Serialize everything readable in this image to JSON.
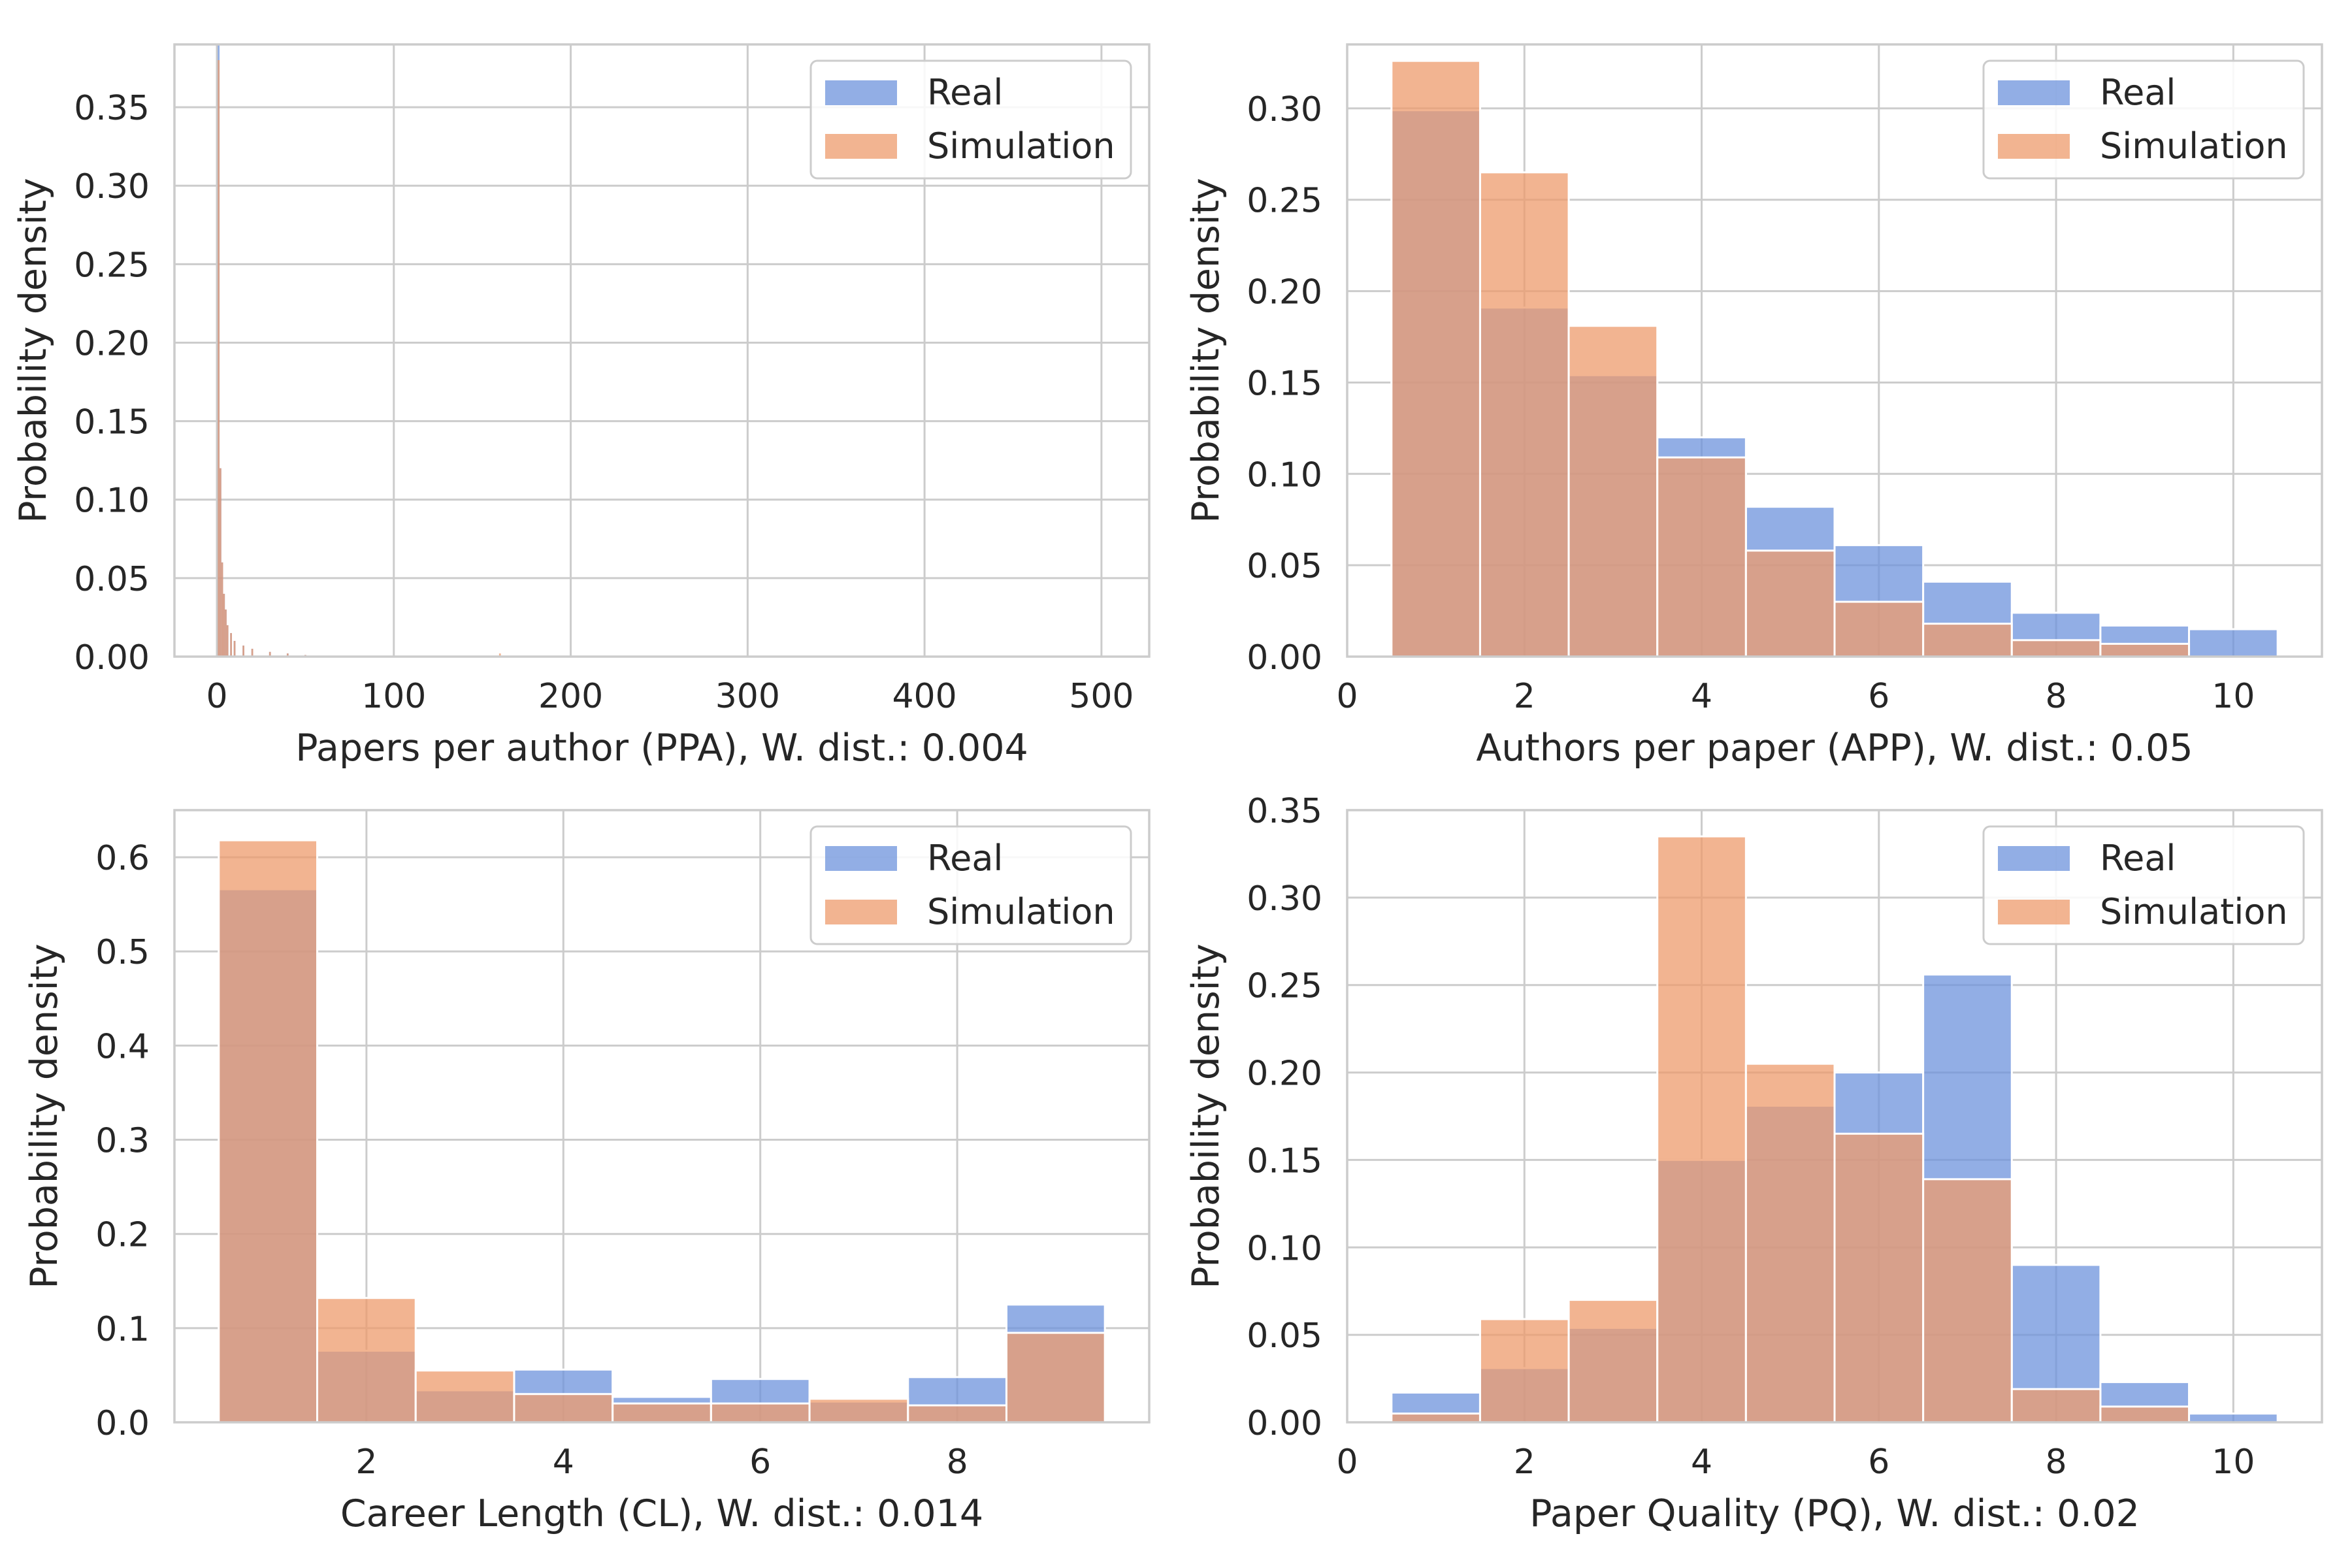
{
  "colors": {
    "real": "#6d93dc",
    "simulation": "#ee9b6c",
    "grid": "#cccccc",
    "frame": "#cccccc",
    "text": "#262626"
  },
  "legend_labels": [
    "Real",
    "Simulation"
  ],
  "chart_data": [
    {
      "type": "bar",
      "subtype": "histogram-overlay",
      "xlabel": "Papers per author (PPA), W. dist.: 0.004",
      "ylabel": "Probability density",
      "xlim": [
        -24,
        527
      ],
      "ylim": [
        0,
        0.39
      ],
      "xticks": [
        0,
        100,
        200,
        300,
        400,
        500
      ],
      "yticks": [
        0.0,
        0.05,
        0.1,
        0.15,
        0.2,
        0.25,
        0.3,
        0.35
      ],
      "ytick_decimals": 2,
      "legend": "top-right",
      "grid": true,
      "bin_width": 1,
      "series": [
        {
          "name": "Real",
          "x": [
            1,
            2,
            3,
            4,
            5,
            6,
            8,
            10,
            15,
            20,
            30,
            40,
            50
          ],
          "values": [
            0.39,
            0.12,
            0.06,
            0.04,
            0.03,
            0.02,
            0.015,
            0.01,
            0.007,
            0.005,
            0.003,
            0.002,
            0.001
          ]
        },
        {
          "name": "Simulation",
          "x": [
            1,
            2,
            3,
            4,
            5,
            6,
            8,
            10,
            15,
            20,
            30,
            40,
            50,
            160
          ],
          "values": [
            0.38,
            0.12,
            0.06,
            0.04,
            0.03,
            0.02,
            0.015,
            0.01,
            0.007,
            0.005,
            0.003,
            0.002,
            0.001,
            0.002
          ]
        }
      ]
    },
    {
      "type": "bar",
      "subtype": "histogram-overlay",
      "xlabel": "Authors per paper (APP), W. dist.: 0.05",
      "ylabel": "Probability density",
      "xlim": [
        0,
        11
      ],
      "ylim": [
        0,
        0.335
      ],
      "xticks": [
        0,
        2,
        4,
        6,
        8,
        10
      ],
      "yticks": [
        0.0,
        0.05,
        0.1,
        0.15,
        0.2,
        0.25,
        0.3
      ],
      "ytick_decimals": 2,
      "legend": "top-right",
      "grid": true,
      "bin_width": 1,
      "categories": [
        1,
        2,
        3,
        4,
        5,
        6,
        7,
        8,
        9,
        10
      ],
      "series": [
        {
          "name": "Real",
          "values": [
            0.299,
            0.191,
            0.154,
            0.12,
            0.082,
            0.061,
            0.041,
            0.024,
            0.017,
            0.015
          ]
        },
        {
          "name": "Simulation",
          "values": [
            0.326,
            0.265,
            0.181,
            0.109,
            0.058,
            0.03,
            0.018,
            0.009,
            0.007,
            0.0
          ]
        }
      ]
    },
    {
      "type": "bar",
      "subtype": "histogram-overlay",
      "xlabel": "Career Length (CL), W. dist.: 0.014",
      "ylabel": "Probability density",
      "xlim": [
        0.05,
        9.95
      ],
      "ylim": [
        0,
        0.65
      ],
      "xticks": [
        2,
        4,
        6,
        8
      ],
      "yticks": [
        0.0,
        0.1,
        0.2,
        0.3,
        0.4,
        0.5,
        0.6
      ],
      "ytick_decimals": 1,
      "legend": "top-right",
      "grid": true,
      "bin_width": 1,
      "categories": [
        1,
        2,
        3,
        4,
        5,
        6,
        7,
        8,
        9
      ],
      "series": [
        {
          "name": "Real",
          "values": [
            0.566,
            0.076,
            0.034,
            0.056,
            0.027,
            0.046,
            0.022,
            0.048,
            0.125
          ]
        },
        {
          "name": "Simulation",
          "values": [
            0.618,
            0.132,
            0.055,
            0.03,
            0.02,
            0.02,
            0.025,
            0.018,
            0.095
          ]
        }
      ]
    },
    {
      "type": "bar",
      "subtype": "histogram-overlay",
      "xlabel": "Paper Quality (PQ), W. dist.: 0.02",
      "ylabel": "Probability density",
      "xlim": [
        0,
        11
      ],
      "ylim": [
        0,
        0.35
      ],
      "xticks": [
        0,
        2,
        4,
        6,
        8,
        10
      ],
      "yticks": [
        0.0,
        0.05,
        0.1,
        0.15,
        0.2,
        0.25,
        0.3,
        0.35
      ],
      "ytick_decimals": 2,
      "legend": "top-right",
      "grid": true,
      "bin_width": 1,
      "categories": [
        1,
        2,
        3,
        4,
        5,
        6,
        7,
        8,
        9,
        10
      ],
      "series": [
        {
          "name": "Real",
          "values": [
            0.017,
            0.031,
            0.054,
            0.15,
            0.181,
            0.2,
            0.256,
            0.09,
            0.023,
            0.005
          ]
        },
        {
          "name": "Simulation",
          "values": [
            0.005,
            0.059,
            0.07,
            0.335,
            0.205,
            0.165,
            0.139,
            0.019,
            0.009,
            0.0
          ]
        }
      ]
    }
  ]
}
